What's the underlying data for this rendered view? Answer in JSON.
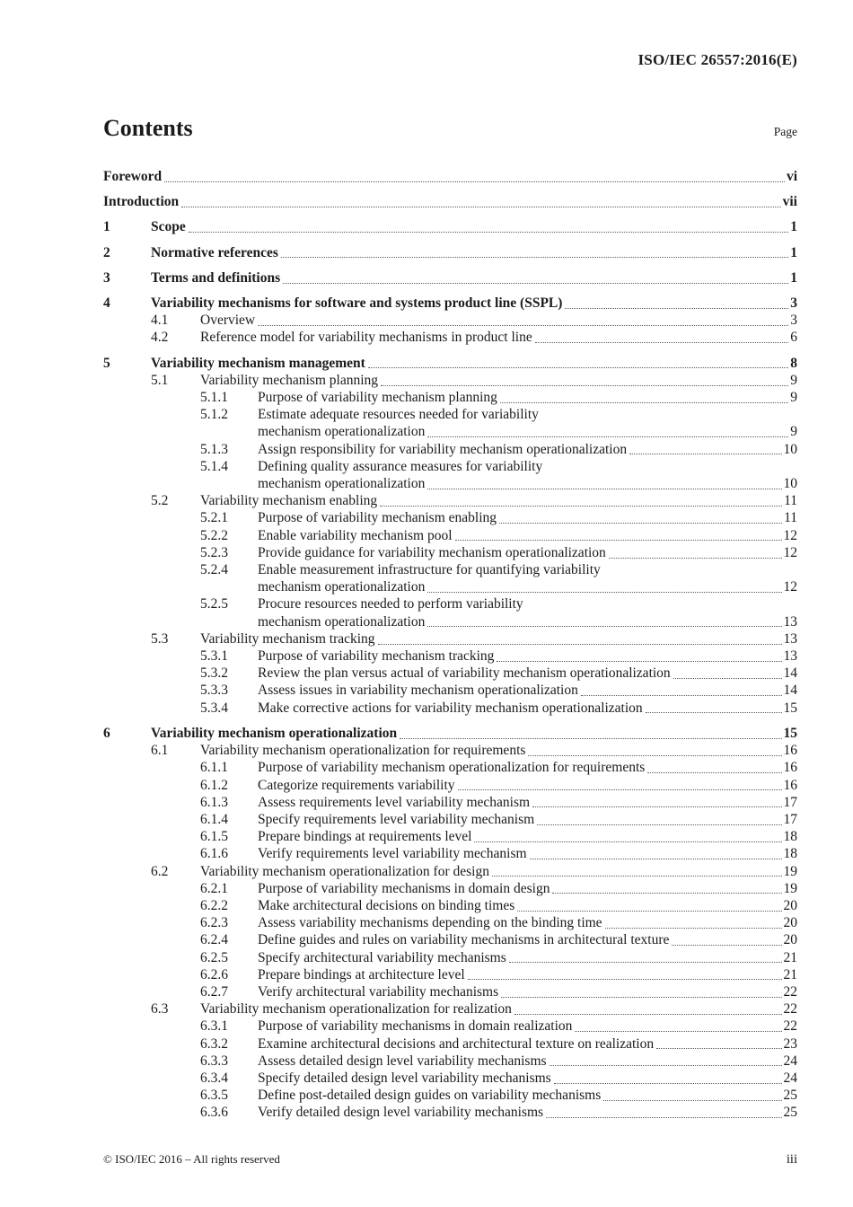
{
  "header": {
    "doc_ref": "ISO/IEC 26557:2016(E)",
    "title": "Contents",
    "page_label": "Page"
  },
  "footer": {
    "copyright": "© ISO/IEC 2016 – All rights reserved",
    "page_number": "iii"
  },
  "toc": {
    "entries": [
      {
        "level": 0,
        "num": "",
        "title": "Foreword",
        "page": "vi",
        "bold": true
      },
      {
        "level": 0,
        "num": "",
        "title": "Introduction",
        "page": "vii",
        "bold": true
      },
      {
        "level": 1,
        "num": "1",
        "title": "Scope",
        "page": "1",
        "bold": true
      },
      {
        "level": 1,
        "num": "2",
        "title": "Normative references",
        "page": "1",
        "bold": true
      },
      {
        "level": 1,
        "num": "3",
        "title": "Terms and definitions",
        "page": "1",
        "bold": true
      },
      {
        "level": 1,
        "num": "4",
        "title": "Variability mechanisms for software and systems product line (SSPL)",
        "page": "3",
        "bold": true
      },
      {
        "level": 2,
        "num": "4.1",
        "title": "Overview",
        "page": "3"
      },
      {
        "level": 2,
        "num": "4.2",
        "title": "Reference model for variability mechanisms in product line",
        "page": "6"
      },
      {
        "level": 1,
        "num": "5",
        "title": "Variability mechanism management",
        "page": "8",
        "bold": true
      },
      {
        "level": 2,
        "num": "5.1",
        "title": "Variability mechanism planning",
        "page": "9"
      },
      {
        "level": 3,
        "num": "5.1.1",
        "title": "Purpose of variability mechanism planning",
        "page": "9"
      },
      {
        "level": 3,
        "num": "5.1.2",
        "title": "Estimate adequate resources needed for variability",
        "title2": "mechanism operationalization",
        "page": "9"
      },
      {
        "level": 3,
        "num": "5.1.3",
        "title": "Assign responsibility for variability mechanism operationalization",
        "page": "10"
      },
      {
        "level": 3,
        "num": "5.1.4",
        "title": "Defining quality assurance measures for variability",
        "title2": "mechanism operationalization",
        "page": "10"
      },
      {
        "level": 2,
        "num": "5.2",
        "title": "Variability mechanism enabling",
        "page": "11"
      },
      {
        "level": 3,
        "num": "5.2.1",
        "title": "Purpose of variability mechanism enabling",
        "page": "11"
      },
      {
        "level": 3,
        "num": "5.2.2",
        "title": "Enable variability mechanism pool",
        "page": "12"
      },
      {
        "level": 3,
        "num": "5.2.3",
        "title": "Provide guidance for variability mechanism operationalization",
        "page": "12"
      },
      {
        "level": 3,
        "num": "5.2.4",
        "title": "Enable measurement infrastructure for quantifying variability",
        "title2": "mechanism operationalization",
        "page": "12"
      },
      {
        "level": 3,
        "num": "5.2.5",
        "title": "Procure resources needed to perform variability",
        "title2": "mechanism operationalization",
        "page": "13"
      },
      {
        "level": 2,
        "num": "5.3",
        "title": "Variability mechanism tracking",
        "page": "13"
      },
      {
        "level": 3,
        "num": "5.3.1",
        "title": "Purpose of variability mechanism tracking",
        "page": "13"
      },
      {
        "level": 3,
        "num": "5.3.2",
        "title": "Review the plan versus actual of variability mechanism operationalization",
        "page": "14"
      },
      {
        "level": 3,
        "num": "5.3.3",
        "title": "Assess issues in variability mechanism operationalization",
        "page": "14"
      },
      {
        "level": 3,
        "num": "5.3.4",
        "title": "Make corrective actions for variability mechanism operationalization",
        "page": "15"
      },
      {
        "level": 1,
        "num": "6",
        "title": "Variability mechanism operationalization",
        "page": "15",
        "bold": true
      },
      {
        "level": 2,
        "num": "6.1",
        "title": "Variability mechanism operationalization for requirements",
        "page": "16"
      },
      {
        "level": 3,
        "num": "6.1.1",
        "title": "Purpose of variability mechanism operationalization for requirements",
        "page": "16"
      },
      {
        "level": 3,
        "num": "6.1.2",
        "title": "Categorize requirements variability",
        "page": "16"
      },
      {
        "level": 3,
        "num": "6.1.3",
        "title": "Assess requirements level variability mechanism",
        "page": "17"
      },
      {
        "level": 3,
        "num": "6.1.4",
        "title": "Specify requirements level variability mechanism",
        "page": "17"
      },
      {
        "level": 3,
        "num": "6.1.5",
        "title": "Prepare bindings at requirements level",
        "page": "18"
      },
      {
        "level": 3,
        "num": "6.1.6",
        "title": "Verify requirements level variability mechanism",
        "page": "18"
      },
      {
        "level": 2,
        "num": "6.2",
        "title": "Variability mechanism operationalization for design",
        "page": "19"
      },
      {
        "level": 3,
        "num": "6.2.1",
        "title": "Purpose of variability mechanisms in domain design",
        "page": "19"
      },
      {
        "level": 3,
        "num": "6.2.2",
        "title": "Make architectural decisions on binding times",
        "page": "20"
      },
      {
        "level": 3,
        "num": "6.2.3",
        "title": "Assess variability mechanisms depending on the binding time",
        "page": "20"
      },
      {
        "level": 3,
        "num": "6.2.4",
        "title": "Define guides and rules on variability mechanisms in architectural texture",
        "page": "20"
      },
      {
        "level": 3,
        "num": "6.2.5",
        "title": "Specify architectural variability mechanisms",
        "page": "21"
      },
      {
        "level": 3,
        "num": "6.2.6",
        "title": "Prepare bindings at architecture level",
        "page": "21"
      },
      {
        "level": 3,
        "num": "6.2.7",
        "title": "Verify architectural variability mechanisms",
        "page": "22"
      },
      {
        "level": 2,
        "num": "6.3",
        "title": "Variability mechanism operationalization for realization",
        "page": "22"
      },
      {
        "level": 3,
        "num": "6.3.1",
        "title": "Purpose of variability mechanisms in domain realization",
        "page": "22"
      },
      {
        "level": 3,
        "num": "6.3.2",
        "title": "Examine architectural decisions and architectural texture on realization",
        "page": "23"
      },
      {
        "level": 3,
        "num": "6.3.3",
        "title": "Assess detailed design level variability mechanisms",
        "page": "24"
      },
      {
        "level": 3,
        "num": "6.3.4",
        "title": "Specify detailed design level variability mechanisms",
        "page": "24"
      },
      {
        "level": 3,
        "num": "6.3.5",
        "title": "Define post-detailed design guides on variability mechanisms",
        "page": "25"
      },
      {
        "level": 3,
        "num": "6.3.6",
        "title": "Verify detailed design level variability mechanisms",
        "page": "25"
      }
    ]
  }
}
